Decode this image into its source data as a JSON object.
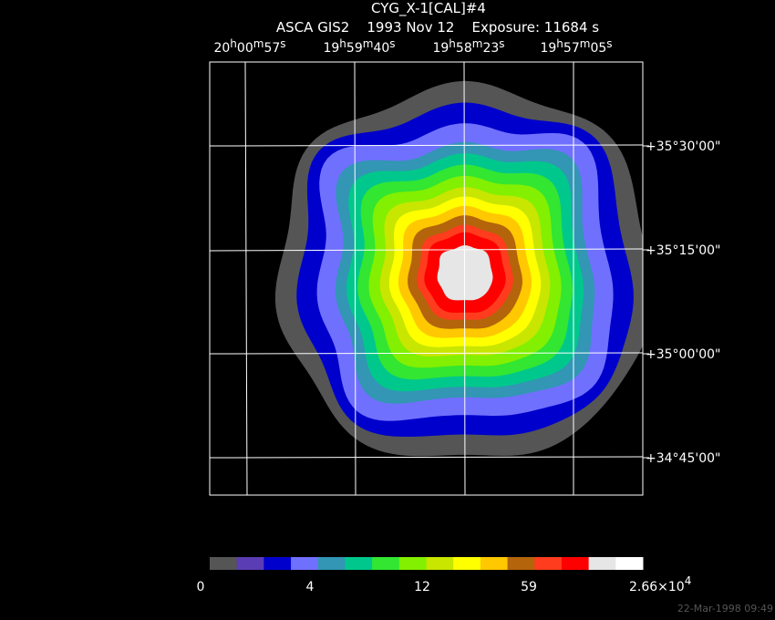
{
  "header": {
    "title": "CYG_X-1[CAL]#4",
    "subtitle": "ASCA GIS2    1993 Nov 12    Exposure: 11684 s"
  },
  "ra_labels": [
    [
      "20",
      "h",
      "00",
      "m",
      "57",
      "s"
    ],
    [
      "19",
      "h",
      "59",
      "m",
      "40",
      "s"
    ],
    [
      "19",
      "h",
      "58",
      "m",
      "23",
      "s"
    ],
    [
      "19",
      "h",
      "57",
      "m",
      "05",
      "s"
    ]
  ],
  "dec_labels": [
    "+35°30'00\"",
    "+35°15'00\"",
    "+35°00'00\"",
    "+34°45'00\""
  ],
  "colorbar": {
    "colors": [
      "#555555",
      "#5a3cb4",
      "#0000cc",
      "#7070ff",
      "#3296b4",
      "#00c88c",
      "#32e632",
      "#82f000",
      "#c8e600",
      "#ffff00",
      "#ffc800",
      "#b4640a",
      "#ff3c1e",
      "#ff0000",
      "#e6e6e6",
      "#ffffff"
    ],
    "labels": [
      "0",
      "4",
      "12",
      "59"
    ],
    "max_label": {
      "mantissa": "2.66×10",
      "exponent": "4"
    }
  },
  "footer": "22-Mar-1998 09:49"
}
